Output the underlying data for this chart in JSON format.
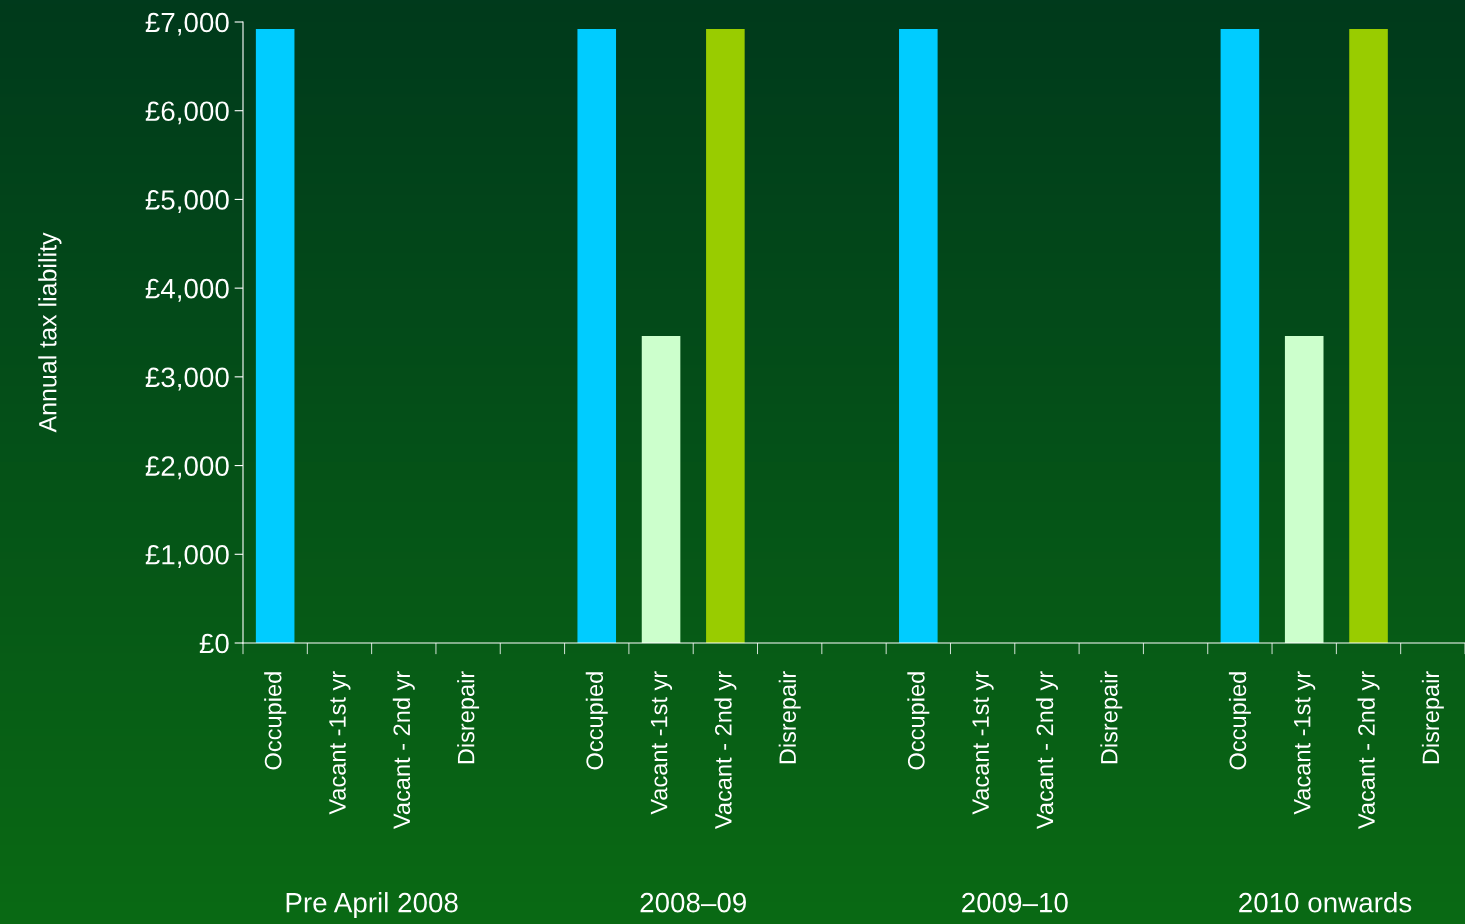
{
  "chart_data": {
    "type": "bar",
    "categories": [
      "Occupied",
      "Vacant -1st yr",
      "Vacant - 2nd yr",
      "Disrepair",
      null,
      "Occupied",
      "Vacant -1st yr",
      "Vacant - 2nd yr",
      "Disrepair",
      null,
      "Occupied",
      "Vacant -1st yr",
      "Vacant - 2nd yr",
      "Disrepair",
      null,
      "Occupied",
      "Vacant -1st yr",
      "Vacant - 2nd yr",
      "Disrepair"
    ],
    "values": [
      6920,
      0,
      0,
      0,
      null,
      6920,
      3460,
      6920,
      0,
      null,
      6920,
      0,
      0,
      0,
      null,
      6920,
      3460,
      6920,
      0
    ],
    "colors": [
      "#00ccff",
      "#ccffcc",
      "#99cc00",
      "#99cc00",
      "#99cc00",
      "#00ccff",
      "#ccffcc",
      "#99cc00",
      "#99cc00",
      "#99cc00",
      "#00ccff",
      "#ccffcc",
      "#99cc00",
      "#99cc00",
      "#99cc00",
      "#00ccff",
      "#ccffcc",
      "#99cc00",
      "#99cc00"
    ],
    "ylabel": "Annual tax liability",
    "ylim": [
      0,
      7000
    ],
    "yticks": [
      {
        "value": 0,
        "label": "£0"
      },
      {
        "value": 1000,
        "label": "£1,000"
      },
      {
        "value": 2000,
        "label": "£2,000"
      },
      {
        "value": 3000,
        "label": "£3,000"
      },
      {
        "value": 4000,
        "label": "£4,000"
      },
      {
        "value": 5000,
        "label": "£5,000"
      },
      {
        "value": 6000,
        "label": "£6,000"
      },
      {
        "value": 7000,
        "label": "£7,000"
      }
    ],
    "annotations": [
      "Pre April 2008",
      "2008–09",
      "2009–10",
      "2010 onwards"
    ],
    "grid": false,
    "legend": false
  }
}
